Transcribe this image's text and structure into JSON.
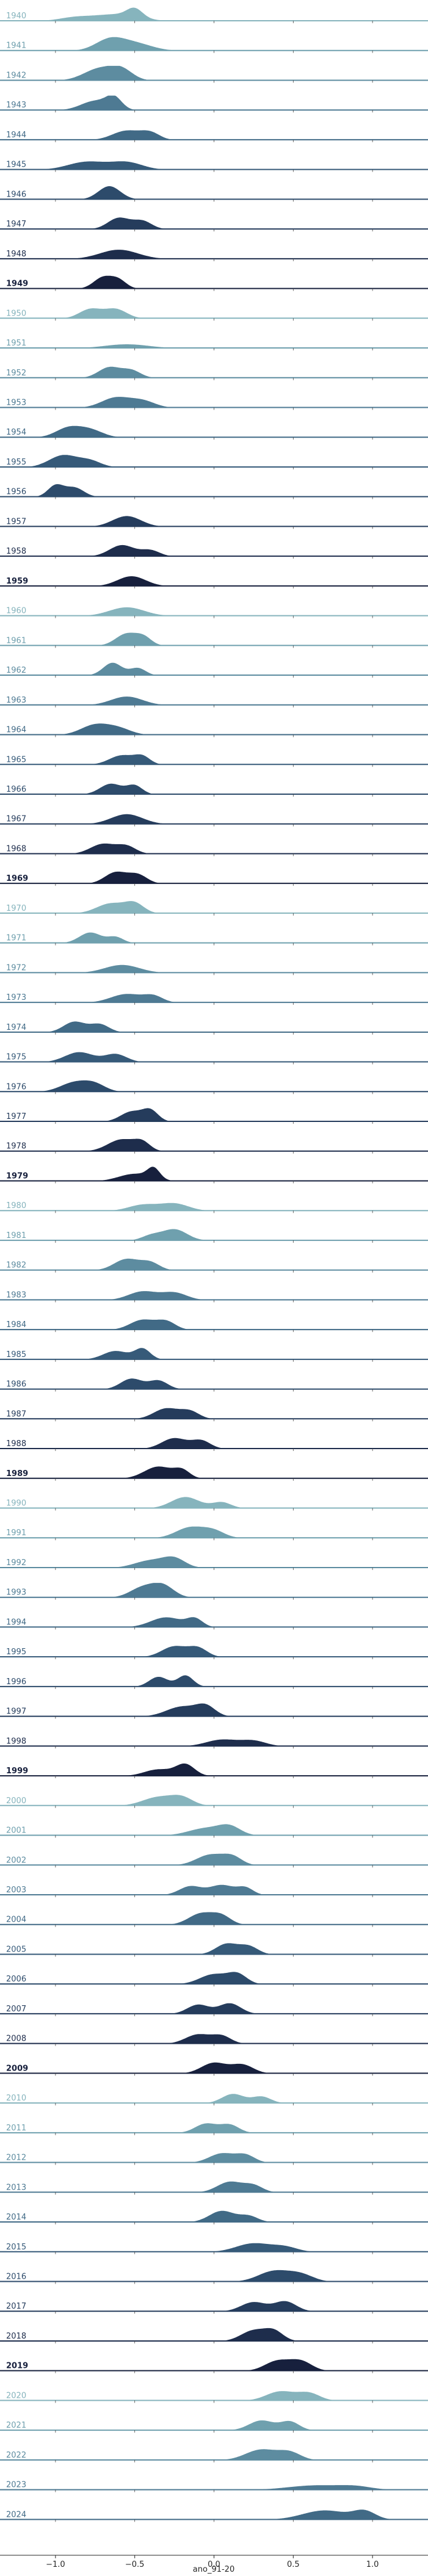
{
  "chart_data": {
    "type": "ridgeline",
    "title": "",
    "xlabel": "ano_91-20",
    "ylabel": "",
    "xlim": [
      -1.35,
      1.35
    ],
    "xticks": [
      {
        "value": -1.0,
        "label": "−1.0"
      },
      {
        "value": -0.5,
        "label": "−0.5"
      },
      {
        "value": 0.0,
        "label": "0.0"
      },
      {
        "value": 0.5,
        "label": "0.5"
      },
      {
        "value": 1.0,
        "label": "1.0"
      }
    ],
    "grid": false,
    "legend": "none",
    "decade_palette": [
      "#86b4bd",
      "#6fa0ae",
      "#5d8ca0",
      "#4e7a93",
      "#416a86",
      "#365a79",
      "#2d4b6b",
      "#253c5c",
      "#1e2d4c",
      "#17203d"
    ],
    "bold_years": [
      "1949",
      "1959",
      "1969",
      "1979",
      "1989",
      "1999",
      "2009",
      "2019"
    ],
    "series": [
      {
        "name": "1940",
        "peaks": [
          [
            -0.88,
            0.1,
            0.25
          ],
          [
            -0.62,
            0.14,
            0.5
          ],
          [
            -0.5,
            0.05,
            0.65
          ]
        ]
      },
      {
        "name": "1941",
        "peaks": [
          [
            -0.66,
            0.09,
            0.8
          ],
          [
            -0.5,
            0.11,
            0.55
          ]
        ]
      },
      {
        "name": "1942",
        "peaks": [
          [
            -0.72,
            0.1,
            0.9
          ],
          [
            -0.58,
            0.07,
            0.7
          ]
        ]
      },
      {
        "name": "1943",
        "peaks": [
          [
            -0.75,
            0.09,
            0.7
          ],
          [
            -0.63,
            0.05,
            0.85
          ]
        ]
      },
      {
        "name": "1944",
        "peaks": [
          [
            -0.55,
            0.09,
            0.7
          ],
          [
            -0.4,
            0.06,
            0.5
          ]
        ]
      },
      {
        "name": "1945",
        "peaks": [
          [
            -0.8,
            0.12,
            0.6
          ],
          [
            -0.55,
            0.1,
            0.55
          ]
        ]
      },
      {
        "name": "1946",
        "peaks": [
          [
            -0.66,
            0.07,
            1.0
          ]
        ]
      },
      {
        "name": "1947",
        "peaks": [
          [
            -0.6,
            0.07,
            0.85
          ],
          [
            -0.45,
            0.06,
            0.6
          ]
        ]
      },
      {
        "name": "1948",
        "peaks": [
          [
            -0.6,
            0.12,
            0.7
          ]
        ]
      },
      {
        "name": "1949",
        "peaks": [
          [
            -0.7,
            0.06,
            0.85
          ],
          [
            -0.6,
            0.05,
            0.6
          ]
        ]
      },
      {
        "name": "1950",
        "peaks": [
          [
            -0.78,
            0.07,
            0.7
          ],
          [
            -0.62,
            0.07,
            0.7
          ]
        ]
      },
      {
        "name": "1951",
        "peaks": [
          [
            -0.55,
            0.14,
            0.3
          ]
        ]
      },
      {
        "name": "1952",
        "peaks": [
          [
            -0.66,
            0.07,
            0.8
          ],
          [
            -0.52,
            0.06,
            0.55
          ]
        ]
      },
      {
        "name": "1953",
        "peaks": [
          [
            -0.62,
            0.09,
            0.75
          ],
          [
            -0.45,
            0.08,
            0.5
          ]
        ]
      },
      {
        "name": "1954",
        "peaks": [
          [
            -0.92,
            0.08,
            0.7
          ],
          [
            -0.78,
            0.08,
            0.55
          ]
        ]
      },
      {
        "name": "1955",
        "peaks": [
          [
            -0.95,
            0.09,
            0.9
          ],
          [
            -0.78,
            0.07,
            0.45
          ]
        ]
      },
      {
        "name": "1956",
        "peaks": [
          [
            -1.0,
            0.05,
            0.85
          ],
          [
            -0.88,
            0.06,
            0.7
          ]
        ]
      },
      {
        "name": "1957",
        "peaks": [
          [
            -0.55,
            0.09,
            0.8
          ]
        ]
      },
      {
        "name": "1958",
        "peaks": [
          [
            -0.58,
            0.08,
            0.85
          ],
          [
            -0.4,
            0.06,
            0.45
          ]
        ]
      },
      {
        "name": "1959",
        "peaks": [
          [
            -0.52,
            0.09,
            0.75
          ]
        ]
      },
      {
        "name": "1960",
        "peaks": [
          [
            -0.55,
            0.11,
            0.65
          ]
        ]
      },
      {
        "name": "1961",
        "peaks": [
          [
            -0.55,
            0.07,
            0.9
          ],
          [
            -0.44,
            0.05,
            0.55
          ]
        ]
      },
      {
        "name": "1962",
        "peaks": [
          [
            -0.64,
            0.06,
            0.95
          ],
          [
            -0.48,
            0.05,
            0.55
          ]
        ]
      },
      {
        "name": "1963",
        "peaks": [
          [
            -0.55,
            0.1,
            0.65
          ]
        ]
      },
      {
        "name": "1964",
        "peaks": [
          [
            -0.75,
            0.09,
            0.75
          ],
          [
            -0.6,
            0.08,
            0.45
          ]
        ]
      },
      {
        "name": "1965",
        "peaks": [
          [
            -0.58,
            0.08,
            0.7
          ],
          [
            -0.45,
            0.05,
            0.55
          ]
        ]
      },
      {
        "name": "1966",
        "peaks": [
          [
            -0.65,
            0.07,
            0.8
          ],
          [
            -0.5,
            0.05,
            0.65
          ]
        ]
      },
      {
        "name": "1967",
        "peaks": [
          [
            -0.55,
            0.1,
            0.75
          ]
        ]
      },
      {
        "name": "1968",
        "peaks": [
          [
            -0.7,
            0.08,
            0.75
          ],
          [
            -0.55,
            0.06,
            0.55
          ]
        ]
      },
      {
        "name": "1969",
        "peaks": [
          [
            -0.62,
            0.07,
            0.85
          ],
          [
            -0.48,
            0.06,
            0.65
          ]
        ]
      },
      {
        "name": "1970",
        "peaks": [
          [
            -0.65,
            0.09,
            0.75
          ],
          [
            -0.5,
            0.06,
            0.7
          ]
        ]
      },
      {
        "name": "1971",
        "peaks": [
          [
            -0.78,
            0.07,
            0.8
          ],
          [
            -0.62,
            0.05,
            0.45
          ]
        ]
      },
      {
        "name": "1972",
        "peaks": [
          [
            -0.58,
            0.11,
            0.6
          ]
        ]
      },
      {
        "name": "1973",
        "peaks": [
          [
            -0.55,
            0.1,
            0.65
          ],
          [
            -0.38,
            0.06,
            0.45
          ]
        ]
      },
      {
        "name": "1974",
        "peaks": [
          [
            -0.88,
            0.07,
            0.8
          ],
          [
            -0.72,
            0.06,
            0.6
          ]
        ]
      },
      {
        "name": "1975",
        "peaks": [
          [
            -0.85,
            0.09,
            0.75
          ],
          [
            -0.62,
            0.07,
            0.6
          ]
        ]
      },
      {
        "name": "1976",
        "peaks": [
          [
            -0.88,
            0.09,
            0.7
          ],
          [
            -0.75,
            0.07,
            0.5
          ]
        ]
      },
      {
        "name": "1977",
        "peaks": [
          [
            -0.52,
            0.07,
            0.75
          ],
          [
            -0.4,
            0.05,
            0.8
          ]
        ]
      },
      {
        "name": "1978",
        "peaks": [
          [
            -0.58,
            0.09,
            0.9
          ],
          [
            -0.45,
            0.05,
            0.55
          ]
        ]
      },
      {
        "name": "1979",
        "peaks": [
          [
            -0.5,
            0.1,
            0.55
          ],
          [
            -0.38,
            0.04,
            0.8
          ]
        ]
      },
      {
        "name": "1980",
        "peaks": [
          [
            -0.45,
            0.09,
            0.45
          ],
          [
            -0.25,
            0.09,
            0.55
          ]
        ]
      },
      {
        "name": "1981",
        "peaks": [
          [
            -0.25,
            0.08,
            0.85
          ],
          [
            -0.4,
            0.06,
            0.35
          ]
        ]
      },
      {
        "name": "1982",
        "peaks": [
          [
            -0.55,
            0.08,
            0.85
          ],
          [
            -0.4,
            0.06,
            0.55
          ]
        ]
      },
      {
        "name": "1983",
        "peaks": [
          [
            -0.45,
            0.09,
            0.65
          ],
          [
            -0.25,
            0.08,
            0.55
          ]
        ]
      },
      {
        "name": "1984",
        "peaks": [
          [
            -0.45,
            0.08,
            0.75
          ],
          [
            -0.3,
            0.06,
            0.6
          ]
        ]
      },
      {
        "name": "1985",
        "peaks": [
          [
            -0.62,
            0.08,
            0.65
          ],
          [
            -0.45,
            0.05,
            0.8
          ]
        ]
      },
      {
        "name": "1986",
        "peaks": [
          [
            -0.52,
            0.07,
            0.8
          ],
          [
            -0.35,
            0.06,
            0.65
          ]
        ]
      },
      {
        "name": "1987",
        "peaks": [
          [
            -0.3,
            0.08,
            0.8
          ],
          [
            -0.15,
            0.06,
            0.55
          ]
        ]
      },
      {
        "name": "1988",
        "peaks": [
          [
            -0.25,
            0.08,
            0.8
          ],
          [
            -0.08,
            0.06,
            0.6
          ]
        ]
      },
      {
        "name": "1989",
        "peaks": [
          [
            -0.35,
            0.09,
            0.9
          ],
          [
            -0.2,
            0.05,
            0.55
          ]
        ]
      },
      {
        "name": "1990",
        "peaks": [
          [
            -0.18,
            0.09,
            0.85
          ],
          [
            0.05,
            0.06,
            0.45
          ]
        ]
      },
      {
        "name": "1991",
        "peaks": [
          [
            -0.15,
            0.09,
            0.8
          ],
          [
            0.0,
            0.07,
            0.5
          ]
        ]
      },
      {
        "name": "1992",
        "peaks": [
          [
            -0.4,
            0.1,
            0.55
          ],
          [
            -0.25,
            0.07,
            0.65
          ]
        ]
      },
      {
        "name": "1993",
        "peaks": [
          [
            -0.45,
            0.08,
            0.75
          ],
          [
            -0.32,
            0.07,
            0.85
          ]
        ]
      },
      {
        "name": "1994",
        "peaks": [
          [
            -0.3,
            0.1,
            0.75
          ],
          [
            -0.12,
            0.05,
            0.6
          ]
        ]
      },
      {
        "name": "1995",
        "peaks": [
          [
            -0.25,
            0.08,
            0.8
          ],
          [
            -0.1,
            0.06,
            0.65
          ]
        ]
      },
      {
        "name": "1996",
        "peaks": [
          [
            -0.35,
            0.06,
            0.75
          ],
          [
            -0.18,
            0.05,
            0.85
          ]
        ]
      },
      {
        "name": "1997",
        "peaks": [
          [
            -0.2,
            0.1,
            0.75
          ],
          [
            -0.05,
            0.06,
            0.7
          ]
        ]
      },
      {
        "name": "1998",
        "peaks": [
          [
            0.05,
            0.1,
            0.5
          ],
          [
            0.25,
            0.08,
            0.4
          ]
        ]
      },
      {
        "name": "1999",
        "peaks": [
          [
            -0.18,
            0.06,
            0.85
          ],
          [
            -0.35,
            0.09,
            0.5
          ]
        ]
      },
      {
        "name": "2000",
        "peaks": [
          [
            -0.35,
            0.1,
            0.65
          ],
          [
            -0.2,
            0.07,
            0.55
          ]
        ]
      },
      {
        "name": "2001",
        "peaks": [
          [
            -0.05,
            0.11,
            0.55
          ],
          [
            0.1,
            0.07,
            0.6
          ]
        ]
      },
      {
        "name": "2002",
        "peaks": [
          [
            -0.02,
            0.09,
            0.8
          ],
          [
            0.12,
            0.06,
            0.55
          ]
        ]
      },
      {
        "name": "2003",
        "peaks": [
          [
            -0.15,
            0.07,
            0.65
          ],
          [
            0.05,
            0.08,
            0.75
          ],
          [
            0.2,
            0.05,
            0.5
          ]
        ]
      },
      {
        "name": "2004",
        "peaks": [
          [
            -0.08,
            0.08,
            0.85
          ],
          [
            0.05,
            0.06,
            0.6
          ]
        ]
      },
      {
        "name": "2005",
        "peaks": [
          [
            0.08,
            0.07,
            0.8
          ],
          [
            0.22,
            0.06,
            0.6
          ]
        ]
      },
      {
        "name": "2006",
        "peaks": [
          [
            0.0,
            0.09,
            0.75
          ],
          [
            0.15,
            0.06,
            0.7
          ]
        ]
      },
      {
        "name": "2007",
        "peaks": [
          [
            -0.1,
            0.07,
            0.7
          ],
          [
            0.1,
            0.07,
            0.8
          ]
        ]
      },
      {
        "name": "2008",
        "peaks": [
          [
            -0.1,
            0.08,
            0.7
          ],
          [
            0.05,
            0.06,
            0.55
          ]
        ]
      },
      {
        "name": "2009",
        "peaks": [
          [
            0.0,
            0.08,
            0.8
          ],
          [
            0.18,
            0.07,
            0.65
          ]
        ]
      },
      {
        "name": "2010",
        "peaks": [
          [
            0.12,
            0.07,
            0.7
          ],
          [
            0.3,
            0.06,
            0.5
          ]
        ]
      },
      {
        "name": "2011",
        "peaks": [
          [
            -0.05,
            0.07,
            0.7
          ],
          [
            0.1,
            0.06,
            0.6
          ]
        ]
      },
      {
        "name": "2012",
        "peaks": [
          [
            0.05,
            0.08,
            0.7
          ],
          [
            0.2,
            0.06,
            0.55
          ]
        ]
      },
      {
        "name": "2013",
        "peaks": [
          [
            0.1,
            0.08,
            0.8
          ],
          [
            0.25,
            0.06,
            0.5
          ]
        ]
      },
      {
        "name": "2014",
        "peaks": [
          [
            0.05,
            0.08,
            0.85
          ],
          [
            0.22,
            0.06,
            0.45
          ]
        ]
      },
      {
        "name": "2015",
        "peaks": [
          [
            0.25,
            0.11,
            0.65
          ],
          [
            0.45,
            0.08,
            0.35
          ]
        ]
      },
      {
        "name": "2016",
        "peaks": [
          [
            0.38,
            0.1,
            0.8
          ],
          [
            0.55,
            0.08,
            0.5
          ]
        ]
      },
      {
        "name": "2017",
        "peaks": [
          [
            0.25,
            0.08,
            0.7
          ],
          [
            0.45,
            0.07,
            0.75
          ]
        ]
      },
      {
        "name": "2018",
        "peaks": [
          [
            0.25,
            0.08,
            0.8
          ],
          [
            0.38,
            0.06,
            0.7
          ]
        ]
      },
      {
        "name": "2019",
        "peaks": [
          [
            0.4,
            0.08,
            0.75
          ],
          [
            0.55,
            0.07,
            0.7
          ]
        ]
      },
      {
        "name": "2020",
        "peaks": [
          [
            0.42,
            0.09,
            0.7
          ],
          [
            0.6,
            0.07,
            0.55
          ]
        ]
      },
      {
        "name": "2021",
        "peaks": [
          [
            0.3,
            0.08,
            0.75
          ],
          [
            0.48,
            0.06,
            0.65
          ]
        ]
      },
      {
        "name": "2022",
        "peaks": [
          [
            0.3,
            0.1,
            0.8
          ],
          [
            0.48,
            0.07,
            0.55
          ]
        ]
      },
      {
        "name": "2023",
        "peaks": [
          [
            0.65,
            0.18,
            0.35
          ],
          [
            0.9,
            0.1,
            0.2
          ]
        ]
      },
      {
        "name": "2024",
        "peaks": [
          [
            0.7,
            0.14,
            0.7
          ],
          [
            0.95,
            0.07,
            0.6
          ]
        ]
      }
    ]
  }
}
